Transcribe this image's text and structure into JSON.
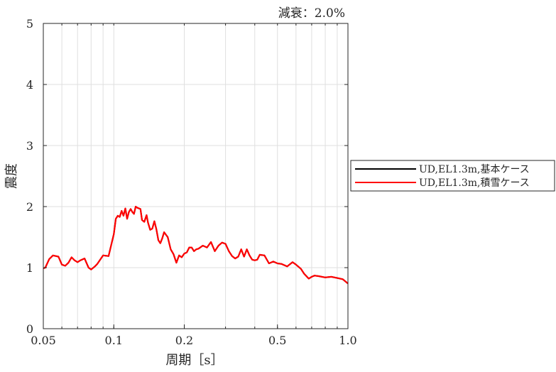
{
  "chart_data": {
    "type": "line",
    "annotation": "減衰：2.0%",
    "xlabel": "周期［s］",
    "ylabel": "震度",
    "xscale": "log",
    "xlim": [
      0.05,
      1.0
    ],
    "ylim": [
      0,
      5
    ],
    "grid": true,
    "legend_placement": "outside-right",
    "x_ticks": [
      0.05,
      0.1,
      0.2,
      0.5,
      1.0
    ],
    "x_tick_labels": [
      "0.05",
      "0.1",
      "0.2",
      "0.5",
      "1.0"
    ],
    "y_ticks": [
      0,
      1,
      2,
      3,
      4,
      5
    ],
    "y_tick_labels": [
      "0",
      "1",
      "2",
      "3",
      "4",
      "5"
    ],
    "series": [
      {
        "name": "UD,EL1.3m,基本ケース",
        "color": "#000000",
        "x": [
          0.05,
          0.051,
          0.053,
          0.055,
          0.058,
          0.06,
          0.062,
          0.064,
          0.066,
          0.068,
          0.07,
          0.072,
          0.075,
          0.078,
          0.08,
          0.083,
          0.085,
          0.09,
          0.095,
          0.1,
          0.102,
          0.104,
          0.106,
          0.108,
          0.11,
          0.112,
          0.114,
          0.116,
          0.118,
          0.12,
          0.122,
          0.124,
          0.126,
          0.13,
          0.132,
          0.135,
          0.138,
          0.14,
          0.143,
          0.146,
          0.149,
          0.152,
          0.155,
          0.158,
          0.161,
          0.164,
          0.167,
          0.17,
          0.175,
          0.18,
          0.185,
          0.19,
          0.195,
          0.2,
          0.205,
          0.21,
          0.215,
          0.22,
          0.225,
          0.23,
          0.24,
          0.25,
          0.26,
          0.27,
          0.28,
          0.29,
          0.3,
          0.31,
          0.32,
          0.33,
          0.34,
          0.35,
          0.36,
          0.37,
          0.38,
          0.39,
          0.4,
          0.41,
          0.42,
          0.44,
          0.46,
          0.48,
          0.5,
          0.52,
          0.55,
          0.58,
          0.6,
          0.63,
          0.65,
          0.68,
          0.7,
          0.72,
          0.75,
          0.8,
          0.85,
          0.9,
          0.95,
          1.0
        ],
        "y": [
          0.99,
          1.0,
          1.14,
          1.2,
          1.18,
          1.05,
          1.03,
          1.08,
          1.17,
          1.12,
          1.09,
          1.12,
          1.15,
          1.0,
          0.97,
          1.02,
          1.06,
          1.2,
          1.19,
          1.55,
          1.8,
          1.85,
          1.83,
          1.93,
          1.85,
          1.97,
          1.8,
          1.91,
          1.96,
          1.91,
          1.88,
          2.0,
          1.98,
          1.96,
          1.78,
          1.75,
          1.86,
          1.74,
          1.62,
          1.64,
          1.76,
          1.63,
          1.45,
          1.4,
          1.48,
          1.58,
          1.54,
          1.5,
          1.3,
          1.22,
          1.08,
          1.2,
          1.17,
          1.23,
          1.25,
          1.33,
          1.33,
          1.27,
          1.3,
          1.31,
          1.36,
          1.33,
          1.42,
          1.27,
          1.36,
          1.41,
          1.39,
          1.27,
          1.19,
          1.15,
          1.18,
          1.3,
          1.18,
          1.3,
          1.2,
          1.13,
          1.12,
          1.13,
          1.21,
          1.2,
          1.07,
          1.1,
          1.07,
          1.06,
          1.02,
          1.09,
          1.05,
          0.98,
          0.9,
          0.82,
          0.85,
          0.87,
          0.86,
          0.84,
          0.85,
          0.83,
          0.81,
          0.74
        ]
      },
      {
        "name": "UD,EL1.3m,積雪ケース",
        "color": "#ff0000",
        "x": [
          0.05,
          0.051,
          0.053,
          0.055,
          0.058,
          0.06,
          0.062,
          0.064,
          0.066,
          0.068,
          0.07,
          0.072,
          0.075,
          0.078,
          0.08,
          0.083,
          0.085,
          0.09,
          0.095,
          0.1,
          0.102,
          0.104,
          0.106,
          0.108,
          0.11,
          0.112,
          0.114,
          0.116,
          0.118,
          0.12,
          0.122,
          0.124,
          0.126,
          0.13,
          0.132,
          0.135,
          0.138,
          0.14,
          0.143,
          0.146,
          0.149,
          0.152,
          0.155,
          0.158,
          0.161,
          0.164,
          0.167,
          0.17,
          0.175,
          0.18,
          0.185,
          0.19,
          0.195,
          0.2,
          0.205,
          0.21,
          0.215,
          0.22,
          0.225,
          0.23,
          0.24,
          0.25,
          0.26,
          0.27,
          0.28,
          0.29,
          0.3,
          0.31,
          0.32,
          0.33,
          0.34,
          0.35,
          0.36,
          0.37,
          0.38,
          0.39,
          0.4,
          0.41,
          0.42,
          0.44,
          0.46,
          0.48,
          0.5,
          0.52,
          0.55,
          0.58,
          0.6,
          0.63,
          0.65,
          0.68,
          0.7,
          0.72,
          0.75,
          0.8,
          0.85,
          0.9,
          0.95,
          1.0
        ],
        "y": [
          0.99,
          1.0,
          1.14,
          1.2,
          1.18,
          1.05,
          1.03,
          1.08,
          1.17,
          1.12,
          1.09,
          1.12,
          1.15,
          1.0,
          0.97,
          1.02,
          1.06,
          1.2,
          1.19,
          1.55,
          1.8,
          1.85,
          1.83,
          1.93,
          1.85,
          1.97,
          1.8,
          1.91,
          1.96,
          1.91,
          1.88,
          2.0,
          1.98,
          1.96,
          1.78,
          1.75,
          1.86,
          1.74,
          1.62,
          1.64,
          1.76,
          1.63,
          1.45,
          1.4,
          1.48,
          1.58,
          1.54,
          1.5,
          1.3,
          1.22,
          1.08,
          1.2,
          1.17,
          1.23,
          1.25,
          1.33,
          1.33,
          1.27,
          1.3,
          1.31,
          1.36,
          1.33,
          1.42,
          1.27,
          1.36,
          1.41,
          1.39,
          1.27,
          1.19,
          1.15,
          1.18,
          1.3,
          1.18,
          1.3,
          1.2,
          1.13,
          1.12,
          1.13,
          1.21,
          1.2,
          1.07,
          1.1,
          1.07,
          1.06,
          1.02,
          1.09,
          1.05,
          0.98,
          0.9,
          0.82,
          0.85,
          0.87,
          0.86,
          0.84,
          0.85,
          0.83,
          0.81,
          0.74
        ]
      }
    ]
  }
}
